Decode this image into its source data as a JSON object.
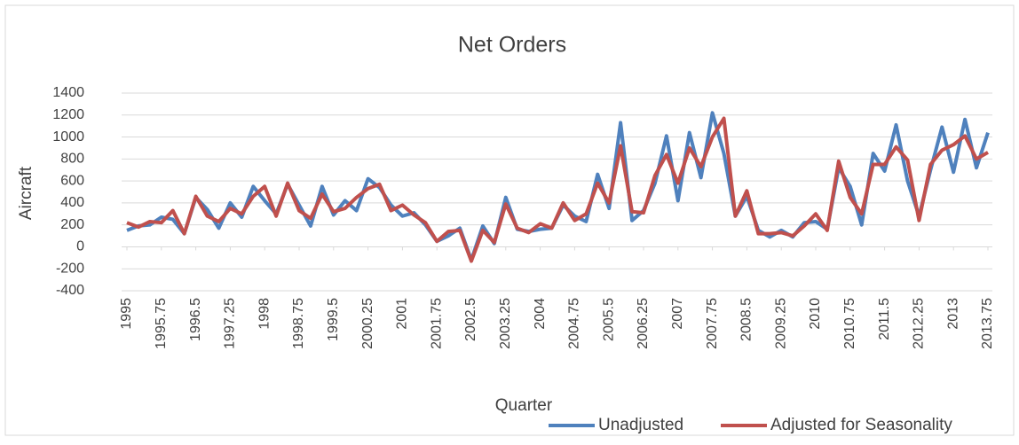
{
  "chart_data": {
    "type": "line",
    "title": "Net Orders",
    "x_label": "Quarter",
    "y_label": "Aircraft",
    "x": [
      1995,
      1995.25,
      1995.5,
      1995.75,
      1996,
      1996.25,
      1996.5,
      1996.75,
      1997,
      1997.25,
      1997.5,
      1997.75,
      1998,
      1998.25,
      1998.5,
      1998.75,
      1999,
      1999.25,
      1999.5,
      1999.75,
      2000,
      2000.25,
      2000.5,
      2000.75,
      2001,
      2001.25,
      2001.5,
      2001.75,
      2002,
      2002.25,
      2002.5,
      2002.75,
      2003,
      2003.25,
      2003.5,
      2003.75,
      2004,
      2004.25,
      2004.5,
      2004.75,
      2005,
      2005.25,
      2005.5,
      2005.75,
      2006,
      2006.25,
      2006.5,
      2006.75,
      2007,
      2007.25,
      2007.5,
      2007.75,
      2008,
      2008.25,
      2008.5,
      2008.75,
      2009,
      2009.25,
      2009.5,
      2009.75,
      2010,
      2010.25,
      2010.5,
      2010.75,
      2011,
      2011.25,
      2011.5,
      2011.75,
      2012,
      2012.25,
      2012.5,
      2012.75,
      2013,
      2013.25,
      2013.5,
      2013.75
    ],
    "series": [
      {
        "name": "Unadjusted",
        "color": "#4f81bd",
        "values": [
          150,
          190,
          200,
          270,
          250,
          120,
          450,
          340,
          170,
          400,
          270,
          550,
          420,
          300,
          570,
          380,
          190,
          550,
          290,
          420,
          330,
          620,
          540,
          380,
          280,
          310,
          200,
          50,
          100,
          170,
          -120,
          190,
          30,
          450,
          160,
          140,
          160,
          170,
          380,
          280,
          230,
          660,
          350,
          1130,
          240,
          330,
          580,
          1010,
          420,
          1040,
          630,
          1220,
          850,
          280,
          460,
          150,
          90,
          150,
          90,
          220,
          230,
          160,
          720,
          550,
          200,
          850,
          690,
          1110,
          600,
          280,
          700,
          1090,
          680,
          1160,
          720,
          1040
        ]
      },
      {
        "name": "Adjusted for Seasonality",
        "color": "#c0504d",
        "values": [
          220,
          180,
          230,
          220,
          330,
          120,
          460,
          280,
          230,
          350,
          300,
          460,
          550,
          280,
          580,
          330,
          260,
          480,
          320,
          350,
          450,
          530,
          570,
          330,
          380,
          290,
          220,
          50,
          140,
          150,
          -130,
          150,
          40,
          390,
          170,
          130,
          210,
          170,
          400,
          240,
          300,
          580,
          400,
          920,
          320,
          310,
          650,
          840,
          580,
          900,
          730,
          1000,
          1170,
          280,
          510,
          120,
          120,
          130,
          100,
          190,
          300,
          150,
          780,
          450,
          300,
          750,
          750,
          910,
          790,
          240,
          750,
          880,
          930,
          1010,
          800,
          860
        ]
      }
    ],
    "xlim": [
      1995,
      2013.75
    ],
    "xticks": [
      1995,
      1995.75,
      1996.5,
      1997.25,
      1998,
      1998.75,
      1999.5,
      2000.25,
      2001,
      2001.75,
      2002.5,
      2003.25,
      2004,
      2004.75,
      2005.5,
      2006.25,
      2007,
      2007.75,
      2008.5,
      2009.25,
      2010,
      2010.75,
      2011.5,
      2012.25,
      2013,
      2013.75
    ],
    "ylim": [
      -400,
      1400
    ],
    "yticks": [
      -400,
      -200,
      0,
      200,
      400,
      600,
      800,
      1000,
      1200,
      1400
    ],
    "grid": true,
    "legend": "bottom"
  }
}
